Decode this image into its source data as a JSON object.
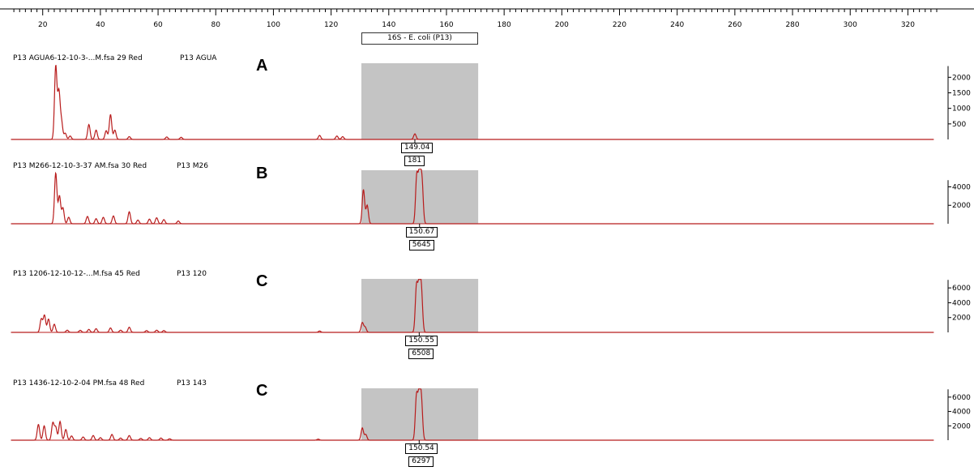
{
  "colors": {
    "trace": "#b81c1c",
    "bin": "#c4c4c4",
    "axis": "#000000"
  },
  "x_axis": {
    "min": 8,
    "max": 330,
    "ticks": [
      20,
      40,
      60,
      80,
      100,
      120,
      140,
      160,
      180,
      200,
      220,
      240,
      260,
      280,
      300,
      320
    ]
  },
  "bin": {
    "label": "16S - E. coli (P13)",
    "range": [
      130.5,
      171
    ]
  },
  "chart_data": [
    {
      "type": "line",
      "panel_letter": "A",
      "file_label": "P13 AGUA6-12-10-3-...M.fsa 29 Red",
      "sample_label": "P13 AGUA",
      "y_ticks": [
        2000,
        1500,
        1000,
        500
      ],
      "ylim": [
        0,
        2400
      ],
      "peak": {
        "size": "149.04",
        "height": "181",
        "x": 149.04,
        "y": 181
      },
      "peaks": [
        [
          24.5,
          2350
        ],
        [
          25.6,
          1500
        ],
        [
          26.5,
          560
        ],
        [
          27.8,
          200
        ],
        [
          29.5,
          110
        ],
        [
          36,
          480
        ],
        [
          38.5,
          300
        ],
        [
          42,
          280
        ],
        [
          43.5,
          800
        ],
        [
          45,
          300
        ],
        [
          50,
          90
        ],
        [
          63,
          80
        ],
        [
          68,
          70
        ],
        [
          116,
          130
        ],
        [
          122,
          110
        ],
        [
          124,
          90
        ],
        [
          149.04,
          181
        ]
      ]
    },
    {
      "type": "line",
      "panel_letter": "B",
      "file_label": "P13 M266-12-10-3-37 AM.fsa 30 Red",
      "sample_label": "P13 M26",
      "y_ticks": [
        4000,
        2000
      ],
      "ylim": [
        0,
        5800
      ],
      "peak": {
        "size": "150.67",
        "height": "5645",
        "x": 150.67,
        "y": 5645
      },
      "peaks": [
        [
          24.5,
          5500
        ],
        [
          25.8,
          3000
        ],
        [
          27,
          1700
        ],
        [
          29,
          700
        ],
        [
          35.5,
          800
        ],
        [
          38.5,
          550
        ],
        [
          41,
          700
        ],
        [
          44.5,
          850
        ],
        [
          50,
          1300
        ],
        [
          53,
          400
        ],
        [
          57,
          500
        ],
        [
          59.5,
          650
        ],
        [
          62,
          450
        ],
        [
          67,
          300
        ],
        [
          131.2,
          3700
        ],
        [
          132.5,
          2000
        ],
        [
          149.7,
          5200
        ],
        [
          150.67,
          5645
        ],
        [
          151.5,
          4500
        ]
      ]
    },
    {
      "type": "line",
      "panel_letter": "C",
      "file_label": "P13 1206-12-10-12-...M.fsa 45 Red",
      "sample_label": "P13 120",
      "y_ticks": [
        6000,
        4000,
        2000
      ],
      "ylim": [
        0,
        7000
      ],
      "peak": {
        "size": "150.55",
        "height": "6508",
        "x": 150.55,
        "y": 6508
      },
      "peaks": [
        [
          19.5,
          1800
        ],
        [
          20.6,
          2300
        ],
        [
          22,
          1800
        ],
        [
          24,
          1100
        ],
        [
          28.5,
          300
        ],
        [
          33,
          280
        ],
        [
          36,
          400
        ],
        [
          38.5,
          500
        ],
        [
          43.5,
          600
        ],
        [
          47,
          300
        ],
        [
          50,
          700
        ],
        [
          56,
          250
        ],
        [
          59.5,
          300
        ],
        [
          62,
          250
        ],
        [
          116,
          180
        ],
        [
          130.8,
          1300
        ],
        [
          131.8,
          700
        ],
        [
          149.6,
          6200
        ],
        [
          150.55,
          6508
        ],
        [
          151.3,
          5300
        ]
      ]
    },
    {
      "type": "line",
      "panel_letter": "C",
      "file_label": "P13 1436-12-10-2-04 PM.fsa 48 Red",
      "sample_label": "P13 143",
      "y_ticks": [
        6000,
        4000,
        2000
      ],
      "ylim": [
        0,
        7000
      ],
      "peak": {
        "size": "150.54",
        "height": "6297",
        "x": 150.54,
        "y": 6297
      },
      "peaks": [
        [
          18.5,
          2200
        ],
        [
          20.5,
          2000
        ],
        [
          23.5,
          2400
        ],
        [
          24.5,
          1800
        ],
        [
          26,
          2600
        ],
        [
          28,
          1500
        ],
        [
          30,
          600
        ],
        [
          34,
          450
        ],
        [
          37.5,
          650
        ],
        [
          40,
          350
        ],
        [
          44,
          800
        ],
        [
          47,
          300
        ],
        [
          50,
          650
        ],
        [
          54,
          250
        ],
        [
          57,
          350
        ],
        [
          61,
          300
        ],
        [
          64,
          200
        ],
        [
          115.5,
          150
        ],
        [
          130.8,
          1700
        ],
        [
          132,
          800
        ],
        [
          149.6,
          6100
        ],
        [
          150.54,
          6297
        ],
        [
          151.3,
          5300
        ]
      ]
    }
  ]
}
